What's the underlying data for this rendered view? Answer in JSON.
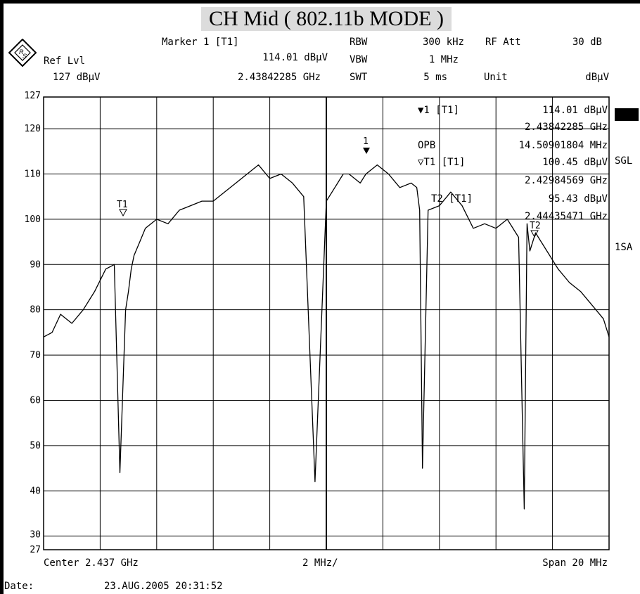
{
  "header": {
    "title": "CH Mid ( 802.11b MODE )",
    "marker_label": "Marker 1 [T1]",
    "marker_level": "114.01 dBµV",
    "marker_freq": "2.43842285 GHz",
    "ref_lvl_label": "Ref Lvl",
    "ref_lvl_value": "127 dBµV",
    "rbw_label": "RBW",
    "rbw_value": "300 kHz",
    "vbw_label": "VBW",
    "vbw_value": "1 MHz",
    "swt_label": "SWT",
    "swt_value": "5 ms",
    "rf_att_label": "RF Att",
    "rf_att_value": "30 dB",
    "unit_label": "Unit",
    "unit_value": "dBµV"
  },
  "side_labels": {
    "sgl": "SGL",
    "sa": "1SA"
  },
  "footer": {
    "center": "Center 2.437 GHz",
    "div": "2 MHz/",
    "span": "Span 20 MHz",
    "date_label": "Date:",
    "date_value": "23.AUG.2005  20:31:52"
  },
  "markers": {
    "m1_label": "▼1 [T1]",
    "m1_level": "114.01 dBµV",
    "m1_freq": "2.43842285 GHz",
    "opb_label": "OPB",
    "opb_value": "14.50901804 MHz",
    "t1_label": "▽T1 [T1]",
    "t1_level": "100.45 dBµV",
    "t1_freq": "2.42984569 GHz",
    "t2_label": "T2 [T1]",
    "t2_level": "95.43 dBµV",
    "t2_freq": "2.44435471 GHz",
    "trace_marker_1": "1",
    "trace_marker_t1": "T1",
    "trace_marker_t2": "T2"
  },
  "colors": {
    "trace": "#000000",
    "grid": "#000000",
    "background": "#ffffff",
    "title_bg": "#dcdcdc"
  },
  "chart_data": {
    "type": "line",
    "title": "CH Mid ( 802.11b MODE )",
    "xlabel": "",
    "ylabel": "",
    "x_unit": "GHz",
    "y_unit": "dBµV",
    "xlim": [
      2.427,
      2.447
    ],
    "ylim": [
      27,
      127
    ],
    "yticks": [
      127,
      120,
      110,
      100,
      90,
      80,
      70,
      60,
      50,
      40,
      30,
      27
    ],
    "grid": true,
    "series": [
      {
        "x": [
          2.427,
          2.4273,
          2.4276,
          2.428,
          2.4284,
          2.4288,
          2.4292,
          2.4295,
          2.4297,
          2.4299,
          2.43,
          2.4301,
          2.4302,
          2.4304,
          2.4306,
          2.431,
          2.4314,
          2.4318,
          2.4322,
          2.4326,
          2.433,
          2.4334,
          2.4338,
          2.4342,
          2.4346,
          2.435,
          2.4354,
          2.4358,
          2.4362,
          2.4366,
          2.437,
          2.4373,
          2.4374,
          2.4375,
          2.4376,
          2.4378,
          2.4382,
          2.4384,
          2.4388,
          2.4392,
          2.4396,
          2.44,
          2.4402,
          2.4403,
          2.4404,
          2.4406,
          2.441,
          2.4414,
          2.4418,
          2.4422,
          2.4426,
          2.443,
          2.4434,
          2.4438,
          2.444,
          2.4441,
          2.4442,
          2.4444,
          2.4448,
          2.4452,
          2.4456,
          2.446,
          2.4464,
          2.4468,
          2.447
        ],
        "y": [
          74,
          75,
          79,
          77,
          80,
          84,
          89,
          90,
          44,
          80,
          84,
          89,
          92,
          95,
          98,
          100,
          99,
          102,
          103,
          104,
          104,
          106,
          108,
          110,
          112,
          109,
          110,
          108,
          105,
          42,
          104,
          107,
          108,
          109,
          110,
          110,
          108,
          110,
          112,
          110,
          107,
          108,
          107,
          102,
          45,
          102,
          103,
          106,
          103,
          98,
          99,
          98,
          100,
          96,
          36,
          99,
          93,
          97,
          93,
          89,
          86,
          84,
          81,
          78,
          74
        ]
      }
    ],
    "annotations": [
      "1",
      "T1",
      "T2"
    ]
  }
}
